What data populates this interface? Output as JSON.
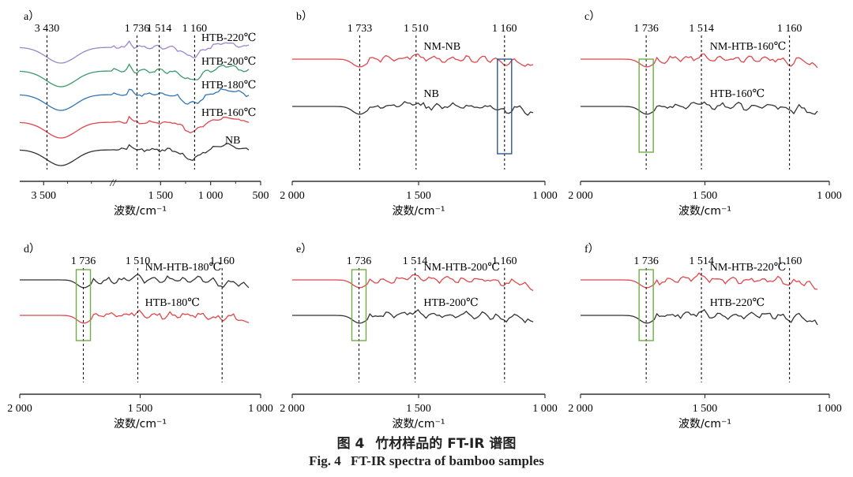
{
  "figure_caption": {
    "cn_number": "图 4",
    "cn_title": "竹材样品的 FT-IR 谱图",
    "en_number": "Fig.  4",
    "en_title": "FT-IR spectra of bamboo samples"
  },
  "colors": {
    "black": "#333333",
    "red": "#e0464a",
    "blue": "#2f75b5",
    "green": "#3b9a6a",
    "purple": "#9b86c9",
    "box_blue": "#2f5597",
    "box_green": "#70ad47"
  },
  "chart_data": [
    {
      "panel": "a）",
      "type": "line",
      "xlabel": "波数/cm⁻¹",
      "xticks": [
        "3 500",
        "1 500",
        "1 000",
        "500"
      ],
      "axis_break": "//",
      "xlim": [
        4000,
        500
      ],
      "peaks": [
        "3 430",
        "1 736",
        "1 514",
        "1 160"
      ],
      "series": [
        {
          "name": "HTB-220℃",
          "color": "purple"
        },
        {
          "name": "HTB-200℃",
          "color": "green"
        },
        {
          "name": "HTB-180℃",
          "color": "blue"
        },
        {
          "name": "HTB-160℃",
          "color": "red"
        },
        {
          "name": "NB",
          "color": "black"
        }
      ]
    },
    {
      "panel": "b）",
      "type": "line",
      "xlabel": "波数/cm⁻¹",
      "xticks": [
        "2 000",
        "1 500",
        "1 000"
      ],
      "xlim": [
        2000,
        1000
      ],
      "peaks": [
        "1 733",
        "1 510",
        "1 160"
      ],
      "highlight": "1 160",
      "series": [
        {
          "name": "NM-NB",
          "color": "red"
        },
        {
          "name": "NB",
          "color": "black"
        }
      ]
    },
    {
      "panel": "c）",
      "type": "line",
      "xlabel": "波数/cm⁻¹",
      "xticks": [
        "2 000",
        "1 500",
        "1 000"
      ],
      "xlim": [
        2000,
        1000
      ],
      "peaks": [
        "1 736",
        "1 514",
        "1 160"
      ],
      "highlight": "1 736",
      "series": [
        {
          "name": "NM-HTB-160℃",
          "color": "red"
        },
        {
          "name": "HTB-160℃",
          "color": "black"
        }
      ]
    },
    {
      "panel": "d）",
      "type": "line",
      "xlabel": "波数/cm⁻¹",
      "xticks": [
        "2 000",
        "1 500",
        "1 000"
      ],
      "xlim": [
        2000,
        1000
      ],
      "peaks": [
        "1 736",
        "1 510",
        "1 160"
      ],
      "highlight": "1 736",
      "series": [
        {
          "name": "NM-HTB-180℃",
          "color": "black"
        },
        {
          "name": "HTB-180℃",
          "color": "red"
        }
      ]
    },
    {
      "panel": "e）",
      "type": "line",
      "xlabel": "波数/cm⁻¹",
      "xticks": [
        "2 000",
        "1 500",
        "1 000"
      ],
      "xlim": [
        2000,
        1000
      ],
      "peaks": [
        "1 736",
        "1 514",
        "1 160"
      ],
      "highlight": "1 736",
      "series": [
        {
          "name": "NM-HTB-200℃",
          "color": "red"
        },
        {
          "name": "HTB-200℃",
          "color": "black"
        }
      ]
    },
    {
      "panel": "f）",
      "type": "line",
      "xlabel": "波数/cm⁻¹",
      "xticks": [
        "2 000",
        "1 500",
        "1 000"
      ],
      "xlim": [
        2000,
        1000
      ],
      "peaks": [
        "1 736",
        "1 514",
        "1 160"
      ],
      "highlight": "1 736",
      "series": [
        {
          "name": "NM-HTB-220℃",
          "color": "red"
        },
        {
          "name": "HTB-220℃",
          "color": "black"
        }
      ]
    }
  ]
}
